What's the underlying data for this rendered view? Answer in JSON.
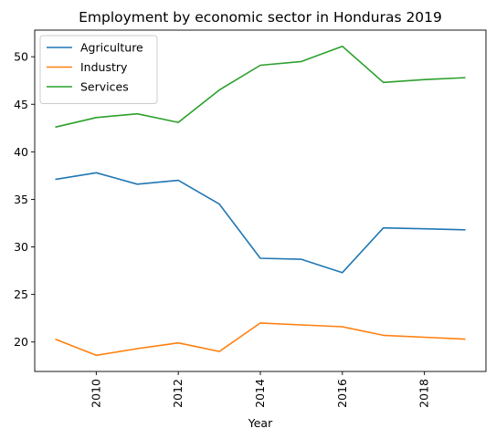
{
  "chart_data": {
    "type": "line",
    "title": "Employment by economic sector in Honduras 2019",
    "xlabel": "Year",
    "ylabel": "",
    "x": [
      2009,
      2010,
      2011,
      2012,
      2013,
      2014,
      2015,
      2016,
      2017,
      2018,
      2019
    ],
    "xlim": [
      2008.5,
      2019.5
    ],
    "ylim": [
      16.9,
      52.8
    ],
    "xticks": [
      "2010",
      "2012",
      "2014",
      "2016",
      "2018"
    ],
    "yticks": [
      "20",
      "25",
      "30",
      "35",
      "40",
      "45",
      "50"
    ],
    "grid": false,
    "legend_position": "top-left",
    "series": [
      {
        "name": "Agriculture",
        "color": "#1f77b4",
        "values": [
          37.1,
          37.8,
          36.6,
          37.0,
          34.5,
          28.8,
          28.7,
          27.3,
          32.0,
          31.9,
          31.8
        ]
      },
      {
        "name": "Industry",
        "color": "#ff7f0e",
        "values": [
          20.3,
          18.6,
          19.3,
          19.9,
          19.0,
          22.0,
          21.8,
          21.6,
          20.7,
          20.5,
          20.3
        ]
      },
      {
        "name": "Services",
        "color": "#2ca02c",
        "values": [
          42.6,
          43.6,
          44.0,
          43.1,
          46.5,
          49.1,
          49.5,
          51.1,
          47.3,
          47.6,
          47.8
        ]
      }
    ]
  }
}
